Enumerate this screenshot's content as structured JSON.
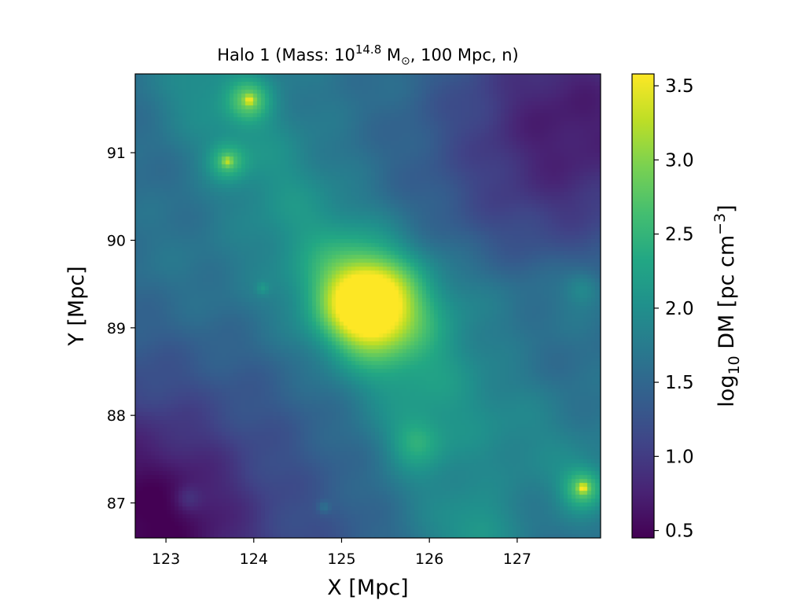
{
  "chart_data": {
    "type": "heatmap",
    "title": {
      "prefix": "Halo 1 (Mass: 10",
      "exponent": "14.8",
      "unit": " M",
      "unit_sub": "⊙",
      "suffix": ", 100 Mpc, n)"
    },
    "xlabel": "X [Mpc]",
    "ylabel": "Y [Mpc]",
    "colorbar_label": {
      "prefix": "log",
      "sub": "10",
      "mid": " DM [pc cm",
      "sup": "−3",
      "suffix": "]"
    },
    "xlim": [
      122.65,
      127.95
    ],
    "ylim": [
      86.6,
      91.9
    ],
    "xticks": [
      {
        "value": 123,
        "label": "123"
      },
      {
        "value": 124,
        "label": "124"
      },
      {
        "value": 125,
        "label": "125"
      },
      {
        "value": 126,
        "label": "126"
      },
      {
        "value": 127,
        "label": "127"
      }
    ],
    "yticks": [
      {
        "value": 87,
        "label": "87"
      },
      {
        "value": 88,
        "label": "88"
      },
      {
        "value": 89,
        "label": "89"
      },
      {
        "value": 90,
        "label": "90"
      },
      {
        "value": 91,
        "label": "91"
      }
    ],
    "colorbar": {
      "colormap": "viridis",
      "range": [
        0.45,
        3.58
      ],
      "ticks": [
        {
          "value": 0.5,
          "label": "0.5"
        },
        {
          "value": 1.0,
          "label": "1.0"
        },
        {
          "value": 1.5,
          "label": "1.5"
        },
        {
          "value": 2.0,
          "label": "2.0"
        },
        {
          "value": 2.5,
          "label": "2.5"
        },
        {
          "value": 3.0,
          "label": "3.0"
        },
        {
          "value": 3.5,
          "label": "3.5"
        }
      ]
    },
    "field": {
      "background_gradient": {
        "value_at_xy_min": 1.2,
        "d_per_mpc_x": 0.06,
        "d_per_mpc_y": 0.07
      },
      "corner_dips": [
        {
          "x": 127.7,
          "y": 91.7,
          "sigma": 1.1,
          "amplitude": -0.85
        },
        {
          "x": 122.8,
          "y": 86.8,
          "sigma": 0.9,
          "amplitude": -0.8
        },
        {
          "x": 127.5,
          "y": 90.6,
          "sigma": 1.2,
          "amplitude": -0.4
        }
      ],
      "filaments": [
        {
          "x1": 123.5,
          "y1": 91.7,
          "x2": 125.3,
          "y2": 89.3,
          "width": 0.45,
          "amplitude": 0.45
        },
        {
          "x1": 125.3,
          "y1": 89.3,
          "x2": 126.3,
          "y2": 86.7,
          "width": 0.5,
          "amplitude": 0.45
        },
        {
          "x1": 125.3,
          "y1": 89.3,
          "x2": 127.7,
          "y2": 87.2,
          "width": 0.45,
          "amplitude": 0.35
        },
        {
          "x1": 125.3,
          "y1": 89.3,
          "x2": 122.7,
          "y2": 89.8,
          "width": 0.6,
          "amplitude": 0.2
        },
        {
          "x1": 125.3,
          "y1": 89.3,
          "x2": 127.7,
          "y2": 89.4,
          "width": 0.4,
          "amplitude": 0.25
        }
      ],
      "halos": [
        {
          "x": 125.3,
          "y": 89.25,
          "sigma": 0.32,
          "amplitude": 1.35
        },
        {
          "x": 125.3,
          "y": 89.25,
          "sigma": 0.07,
          "amplitude": 0.35
        },
        {
          "x": 123.95,
          "y": 91.6,
          "sigma": 0.17,
          "amplitude": 0.85
        },
        {
          "x": 123.95,
          "y": 91.6,
          "sigma": 0.04,
          "amplitude": 0.7
        },
        {
          "x": 123.7,
          "y": 90.9,
          "sigma": 0.15,
          "amplitude": 0.75
        },
        {
          "x": 123.7,
          "y": 90.9,
          "sigma": 0.04,
          "amplitude": 0.6
        },
        {
          "x": 127.75,
          "y": 87.17,
          "sigma": 0.16,
          "amplitude": 0.9
        },
        {
          "x": 127.75,
          "y": 87.17,
          "sigma": 0.04,
          "amplitude": 0.9
        },
        {
          "x": 125.85,
          "y": 87.7,
          "sigma": 0.2,
          "amplitude": 0.5
        },
        {
          "x": 127.75,
          "y": 89.45,
          "sigma": 0.14,
          "amplitude": 0.35
        },
        {
          "x": 126.6,
          "y": 86.65,
          "sigma": 0.25,
          "amplitude": 0.35
        },
        {
          "x": 124.1,
          "y": 89.45,
          "sigma": 0.05,
          "amplitude": 0.3
        },
        {
          "x": 124.8,
          "y": 86.95,
          "sigma": 0.05,
          "amplitude": 0.3
        },
        {
          "x": 123.25,
          "y": 87.05,
          "sigma": 0.1,
          "amplitude": 0.25
        }
      ]
    }
  }
}
